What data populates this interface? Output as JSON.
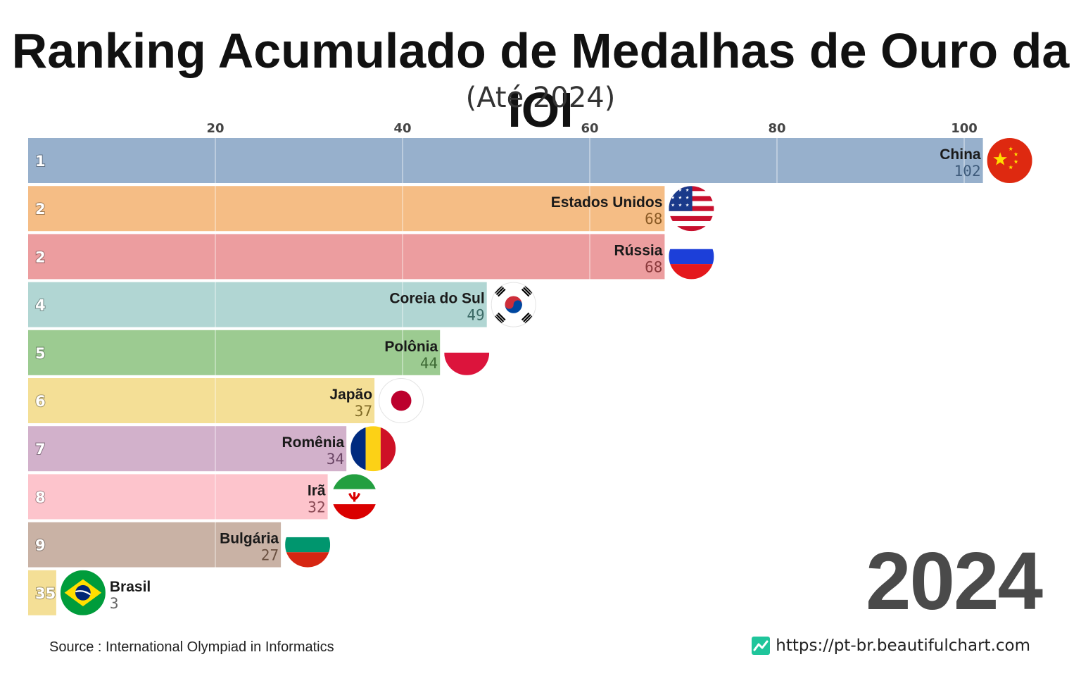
{
  "title": "Ranking Acumulado de Medalhas de Ouro da IOI",
  "subtitle": "(Até 2024)",
  "year": "2024",
  "source": "Source : International Olympiad in Informatics",
  "website": "https://pt-br.beautifulchart.com",
  "colors": {
    "accent_site_icon": "#1fc59b",
    "axis_text": "#444444",
    "year_text": "#4a4a4a"
  },
  "chart_data": {
    "type": "bar",
    "orientation": "horizontal",
    "xlim": [
      0,
      104
    ],
    "x_ticks": [
      20,
      40,
      60,
      80,
      100
    ],
    "x_tick_labels": [
      "20",
      "40",
      "60",
      "80",
      "100"
    ],
    "grid": true,
    "bars": [
      {
        "rank": "1",
        "name": "China",
        "value": 102,
        "value_label": "102",
        "color": "#97b0cc",
        "value_color": "#3d5a7a",
        "flag": "china-flag"
      },
      {
        "rank": "2",
        "name": "Estados Unidos",
        "value": 68,
        "value_label": "68",
        "color": "#f5bd85",
        "value_color": "#8a5a25",
        "flag": "usa-flag"
      },
      {
        "rank": "2",
        "name": "Rússia",
        "value": 68,
        "value_label": "68",
        "color": "#ec9d9f",
        "value_color": "#8a3a3c",
        "flag": "russia-flag"
      },
      {
        "rank": "4",
        "name": "Coreia do Sul",
        "value": 49,
        "value_label": "49",
        "color": "#b1d6d3",
        "value_color": "#3c6a66",
        "flag": "south-korea-flag"
      },
      {
        "rank": "5",
        "name": "Polônia",
        "value": 44,
        "value_label": "44",
        "color": "#9ccb91",
        "value_color": "#3e6a35",
        "flag": "poland-flag"
      },
      {
        "rank": "6",
        "name": "Japão",
        "value": 37,
        "value_label": "37",
        "color": "#f4df96",
        "value_color": "#7f6a25",
        "flag": "japan-flag"
      },
      {
        "rank": "7",
        "name": "Romênia",
        "value": 34,
        "value_label": "34",
        "color": "#d2b1cb",
        "value_color": "#6a4565",
        "flag": "romania-flag"
      },
      {
        "rank": "8",
        "name": "Irã",
        "value": 32,
        "value_label": "32",
        "color": "#fdc4cc",
        "value_color": "#8a4a55",
        "flag": "iran-flag"
      },
      {
        "rank": "9",
        "name": "Bulgária",
        "value": 27,
        "value_label": "27",
        "color": "#c9b2a5",
        "value_color": "#6a5040",
        "flag": "bulgaria-flag"
      },
      {
        "rank": "35",
        "name": "Brasil",
        "value": 3,
        "value_label": "3",
        "color": "#f4df96",
        "value_color": "#666666",
        "flag": "brazil-flag",
        "label_outside": true
      }
    ]
  }
}
